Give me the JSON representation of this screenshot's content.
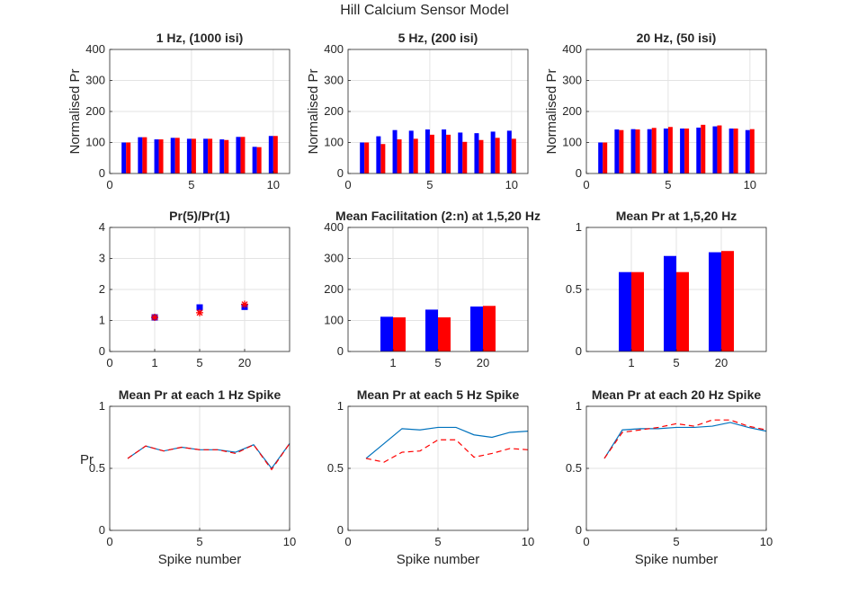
{
  "figure": {
    "title": "Hill Calcium Sensor Model"
  },
  "colors": {
    "blue": "#0000FF",
    "red": "#FF0000",
    "line_blue": "#0072BD",
    "grid": "#E3E3E3",
    "axis": "#262626"
  },
  "chart_data": [
    {
      "id": "p1",
      "type": "bar",
      "title": "1 Hz,  (1000 isi)",
      "ylabel": "Normalised Pr",
      "xlabel": "",
      "xlim": [
        0,
        11
      ],
      "ylim": [
        0,
        400
      ],
      "xticks": [
        0,
        5,
        10
      ],
      "yticks": [
        0,
        100,
        200,
        300,
        400
      ],
      "grid": true,
      "x": [
        1,
        2,
        3,
        4,
        5,
        6,
        7,
        8,
        9,
        10
      ],
      "series": [
        {
          "color": "#0000FF",
          "values": [
            100,
            117,
            110,
            115,
            112,
            112,
            110,
            118,
            86,
            121
          ]
        },
        {
          "color": "#FF0000",
          "values": [
            100,
            117,
            110,
            115,
            112,
            112,
            108,
            118,
            85,
            121
          ]
        }
      ]
    },
    {
      "id": "p2",
      "type": "bar",
      "title": "5 Hz,  (200 isi)",
      "ylabel": "Normalised Pr",
      "xlabel": "",
      "xlim": [
        0,
        11
      ],
      "ylim": [
        0,
        400
      ],
      "xticks": [
        0,
        5,
        10
      ],
      "yticks": [
        0,
        100,
        200,
        300,
        400
      ],
      "grid": true,
      "x": [
        1,
        2,
        3,
        4,
        5,
        6,
        7,
        8,
        9,
        10
      ],
      "series": [
        {
          "color": "#0000FF",
          "values": [
            100,
            120,
            140,
            138,
            142,
            142,
            132,
            130,
            135,
            138
          ]
        },
        {
          "color": "#FF0000",
          "values": [
            100,
            95,
            110,
            112,
            125,
            125,
            102,
            108,
            115,
            112
          ]
        }
      ]
    },
    {
      "id": "p3",
      "type": "bar",
      "title": "20 Hz,  (50 isi)",
      "ylabel": "Normalised Pr",
      "xlabel": "",
      "xlim": [
        0,
        11
      ],
      "ylim": [
        0,
        400
      ],
      "xticks": [
        0,
        5,
        10
      ],
      "yticks": [
        0,
        100,
        200,
        300,
        400
      ],
      "grid": true,
      "x": [
        1,
        2,
        3,
        4,
        5,
        6,
        7,
        8,
        9,
        10
      ],
      "series": [
        {
          "color": "#0000FF",
          "values": [
            100,
            142,
            143,
            143,
            145,
            145,
            148,
            152,
            145,
            140
          ]
        },
        {
          "color": "#FF0000",
          "values": [
            100,
            140,
            142,
            147,
            150,
            145,
            157,
            155,
            145,
            143
          ]
        }
      ]
    },
    {
      "id": "p4",
      "type": "scatter",
      "title": "Pr(5)/Pr(1)",
      "xlabel": "",
      "ylabel": "",
      "xlim": [
        0,
        4
      ],
      "ylim": [
        0,
        4
      ],
      "xticks": [
        0,
        1,
        2,
        3
      ],
      "xticklabels": [
        "0",
        "1",
        "5",
        "20"
      ],
      "yticks": [
        0,
        1,
        2,
        3,
        4
      ],
      "grid": true,
      "series": [
        {
          "marker": "square",
          "color": "#0000FF",
          "x": [
            1,
            2,
            3
          ],
          "y": [
            1.1,
            1.42,
            1.44
          ]
        },
        {
          "marker": "star",
          "color": "#FF0000",
          "x": [
            1,
            2,
            3
          ],
          "y": [
            1.1,
            1.25,
            1.52
          ]
        }
      ]
    },
    {
      "id": "p5",
      "type": "bar",
      "title": "Mean Facilitation (2:n) at 1,5,20 Hz",
      "xlabel": "",
      "ylabel": "",
      "xlim": [
        0,
        4
      ],
      "ylim": [
        0,
        400
      ],
      "xticks": [
        1,
        2,
        3
      ],
      "xticklabels": [
        "1",
        "5",
        "20"
      ],
      "yticks": [
        0,
        100,
        200,
        300,
        400
      ],
      "grid": true,
      "x": [
        1,
        2,
        3
      ],
      "series": [
        {
          "color": "#0000FF",
          "values": [
            112,
            135,
            145
          ]
        },
        {
          "color": "#FF0000",
          "values": [
            110,
            110,
            147
          ]
        }
      ]
    },
    {
      "id": "p6",
      "type": "bar",
      "title": "Mean Pr at 1,5,20 Hz",
      "xlabel": "",
      "ylabel": "",
      "xlim": [
        0,
        4
      ],
      "ylim": [
        0,
        1
      ],
      "xticks": [
        1,
        2,
        3
      ],
      "xticklabels": [
        "1",
        "5",
        "20"
      ],
      "yticks": [
        0,
        0.5,
        1
      ],
      "grid": true,
      "x": [
        1,
        2,
        3
      ],
      "series": [
        {
          "color": "#0000FF",
          "values": [
            0.64,
            0.77,
            0.8
          ]
        },
        {
          "color": "#FF0000",
          "values": [
            0.64,
            0.64,
            0.81
          ]
        }
      ]
    },
    {
      "id": "p7",
      "type": "line",
      "title": "Mean Pr at each 1 Hz Spike",
      "xlabel": "Spike number",
      "ylabel": "Pr",
      "xlim": [
        0,
        10
      ],
      "ylim": [
        0,
        1
      ],
      "xticks": [
        0,
        5,
        10
      ],
      "yticks": [
        0,
        0.5,
        1
      ],
      "grid": true,
      "series": [
        {
          "style": "solid",
          "color": "#0072BD",
          "x": [
            1,
            2,
            3,
            4,
            5,
            6,
            7,
            8,
            9,
            10
          ],
          "y": [
            0.58,
            0.68,
            0.64,
            0.67,
            0.65,
            0.65,
            0.63,
            0.69,
            0.5,
            0.7
          ]
        },
        {
          "style": "dashed",
          "color": "#FF0000",
          "x": [
            1,
            2,
            3,
            4,
            5,
            6,
            7,
            8,
            9,
            10
          ],
          "y": [
            0.58,
            0.68,
            0.64,
            0.67,
            0.65,
            0.65,
            0.62,
            0.69,
            0.49,
            0.7
          ]
        }
      ]
    },
    {
      "id": "p8",
      "type": "line",
      "title": "Mean Pr at each 5 Hz Spike",
      "xlabel": "Spike number",
      "ylabel": "",
      "xlim": [
        0,
        10
      ],
      "ylim": [
        0,
        1
      ],
      "xticks": [
        0,
        5,
        10
      ],
      "yticks": [
        0,
        0.5,
        1
      ],
      "grid": true,
      "series": [
        {
          "style": "solid",
          "color": "#0072BD",
          "x": [
            1,
            2,
            3,
            4,
            5,
            6,
            7,
            8,
            9,
            10
          ],
          "y": [
            0.58,
            0.7,
            0.82,
            0.81,
            0.83,
            0.83,
            0.77,
            0.75,
            0.79,
            0.8
          ]
        },
        {
          "style": "dashed",
          "color": "#FF0000",
          "x": [
            1,
            2,
            3,
            4,
            5,
            6,
            7,
            8,
            9,
            10
          ],
          "y": [
            0.58,
            0.55,
            0.63,
            0.64,
            0.73,
            0.73,
            0.59,
            0.62,
            0.66,
            0.65
          ]
        }
      ]
    },
    {
      "id": "p9",
      "type": "line",
      "title": "Mean Pr at each 20 Hz Spike",
      "xlabel": "Spike number",
      "ylabel": "",
      "xlim": [
        0,
        10
      ],
      "ylim": [
        0,
        1
      ],
      "xticks": [
        0,
        5,
        10
      ],
      "yticks": [
        0,
        0.5,
        1
      ],
      "grid": true,
      "series": [
        {
          "style": "solid",
          "color": "#0072BD",
          "x": [
            1,
            2,
            3,
            4,
            5,
            6,
            7,
            8,
            9,
            10
          ],
          "y": [
            0.58,
            0.81,
            0.82,
            0.82,
            0.83,
            0.83,
            0.84,
            0.87,
            0.83,
            0.8
          ]
        },
        {
          "style": "dashed",
          "color": "#FF0000",
          "x": [
            1,
            2,
            3,
            4,
            5,
            6,
            7,
            8,
            9,
            10
          ],
          "y": [
            0.58,
            0.79,
            0.81,
            0.83,
            0.86,
            0.84,
            0.89,
            0.89,
            0.84,
            0.81
          ]
        }
      ]
    }
  ]
}
